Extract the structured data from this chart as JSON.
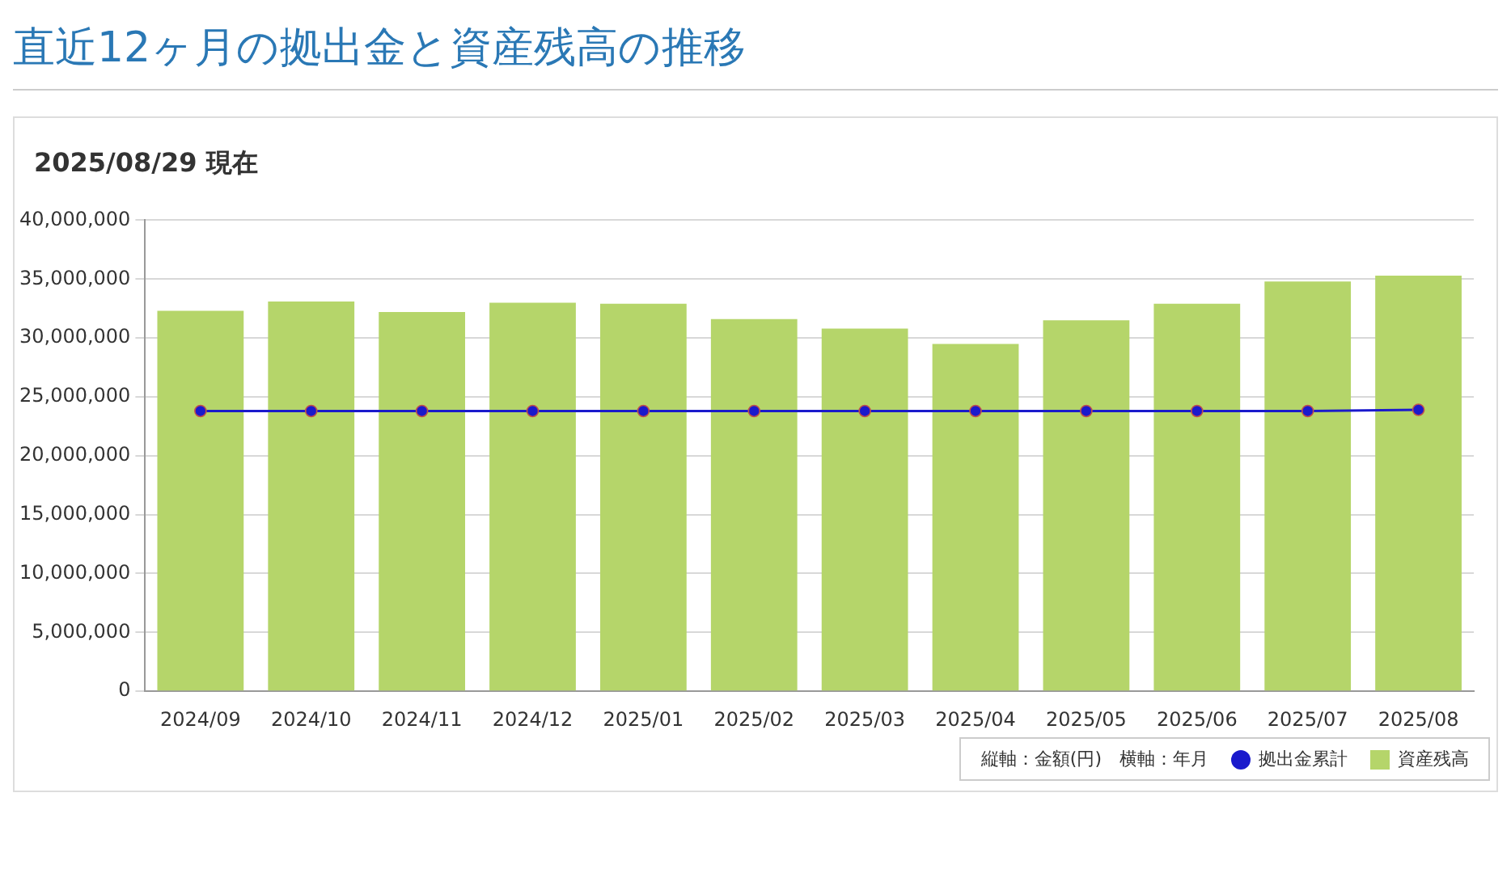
{
  "chart_data": {
    "type": "bar",
    "title": "直近12ヶ月の拠出金と資産残高の推移",
    "subtitle": "2025/08/29 現在",
    "categories": [
      "2024/09",
      "2024/10",
      "2024/11",
      "2024/12",
      "2025/01",
      "2025/02",
      "2025/03",
      "2025/04",
      "2025/05",
      "2025/06",
      "2025/07",
      "2025/08"
    ],
    "series": [
      {
        "name": "拠出金累計",
        "type": "line",
        "color": "#1a1acc",
        "marker": "circle",
        "values": [
          23800000,
          23800000,
          23800000,
          23800000,
          23800000,
          23800000,
          23800000,
          23800000,
          23800000,
          23800000,
          23800000,
          23900000
        ]
      },
      {
        "name": "資産残高",
        "color": "#b5d56a",
        "values": [
          32300000,
          33100000,
          32200000,
          33000000,
          32900000,
          31600000,
          30800000,
          29500000,
          31500000,
          32900000,
          34800000,
          35300000
        ]
      }
    ],
    "ylim": [
      0,
      40000000
    ],
    "yticks": [
      0,
      {
        "value": 5000000,
        "label": "5,000,000"
      },
      {
        "value": 10000000,
        "label": "10,000,000"
      },
      {
        "value": 15000000,
        "label": "15,000,000"
      },
      {
        "value": 20000000,
        "label": "20,000,000"
      },
      {
        "value": 25000000,
        "label": "25,000,000"
      },
      {
        "value": 30000000,
        "label": "30,000,000"
      },
      {
        "value": 35000000,
        "label": "35,000,000"
      },
      {
        "value": 40000000,
        "label": "40,000,000"
      }
    ],
    "grid": "y",
    "legend": "bottom right",
    "annotations": [
      "縦軸：金額(円)　横軸：年月"
    ]
  }
}
